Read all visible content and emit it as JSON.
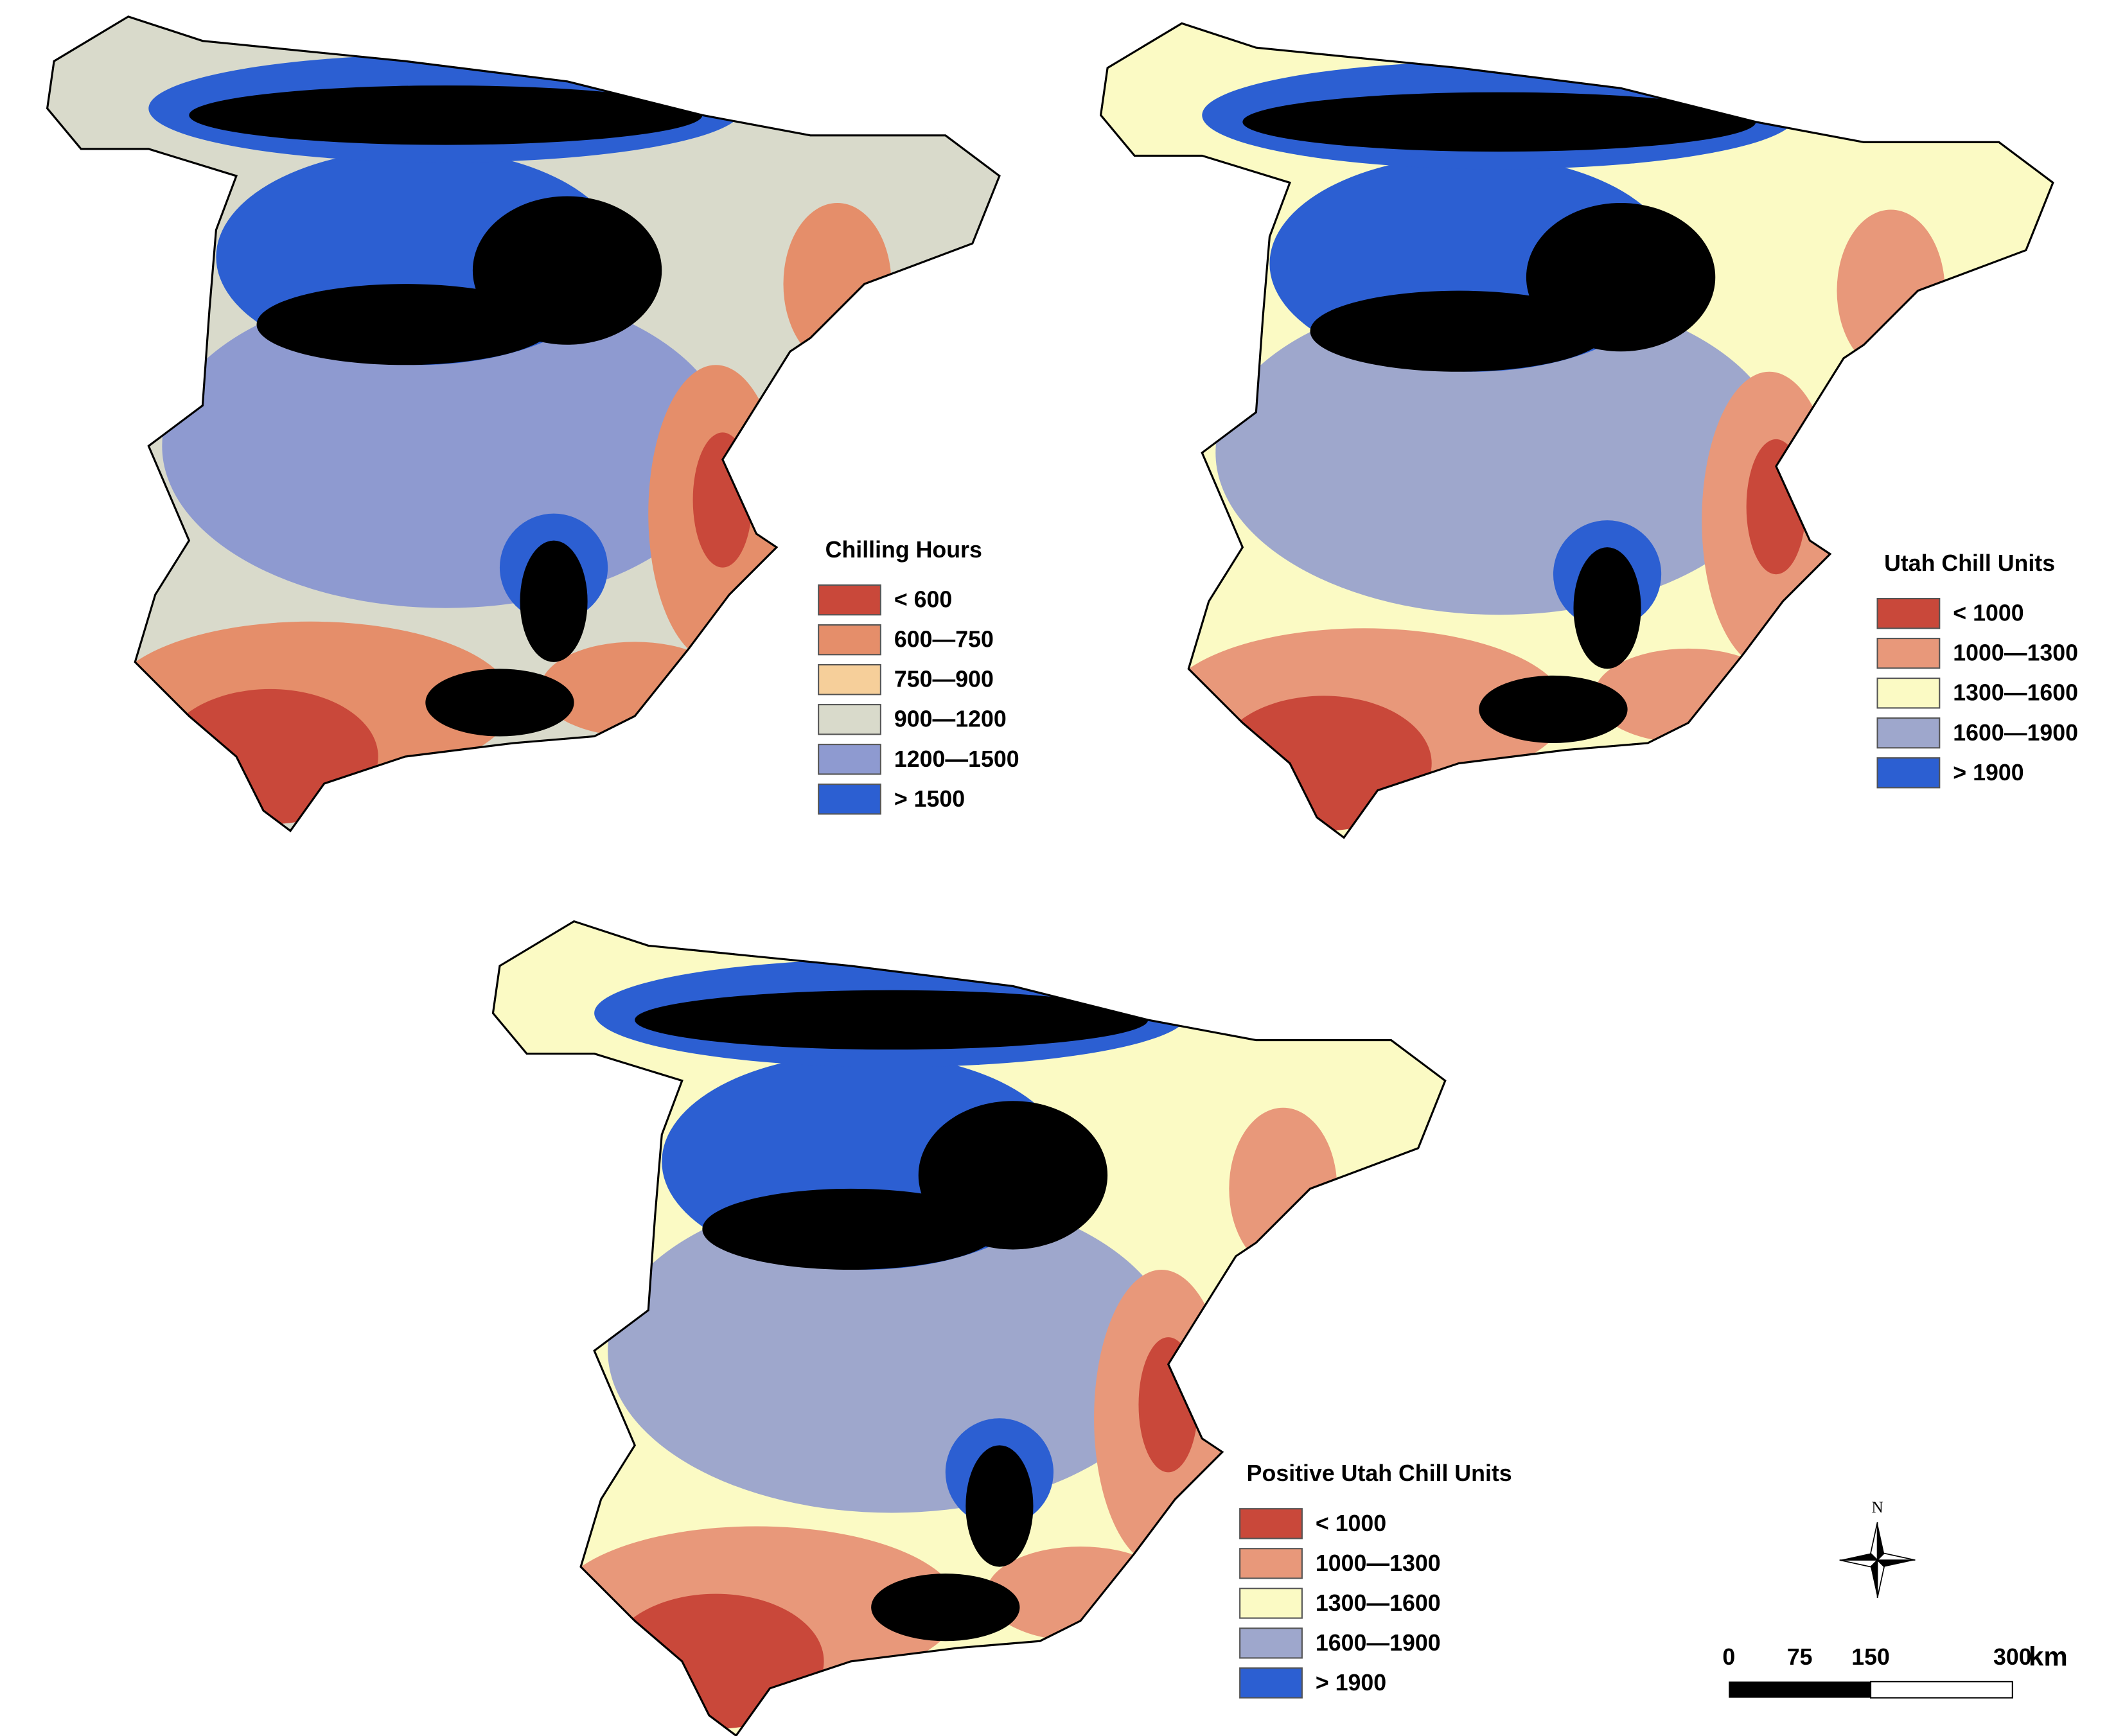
{
  "maps": [
    {
      "title": "Chilling Hours",
      "legend": [
        {
          "label": "< 600",
          "color": "#c9483a"
        },
        {
          "label": "600—750",
          "color": "#e58e6a"
        },
        {
          "label": "750—900",
          "color": "#f6cf9a"
        },
        {
          "label": "900—1200",
          "color": "#d9dacb"
        },
        {
          "label": "1200—1500",
          "color": "#8e9ad0"
        },
        {
          "label": "> 1500",
          "color": "#2c5fd2"
        }
      ]
    },
    {
      "title": "Utah Chill Units",
      "legend": [
        {
          "label": "< 1000",
          "color": "#c9483a"
        },
        {
          "label": "1000—1300",
          "color": "#e8987a"
        },
        {
          "label": "1300—1600",
          "color": "#fbfac4"
        },
        {
          "label": "1600—1900",
          "color": "#9ea7cc"
        },
        {
          "label": "> 1900",
          "color": "#2c5fd2"
        }
      ]
    },
    {
      "title": "Positive Utah Chill Units",
      "legend": [
        {
          "label": "< 1000",
          "color": "#c9483a"
        },
        {
          "label": "1000—1300",
          "color": "#e8987a"
        },
        {
          "label": "1300—1600",
          "color": "#fbfac4"
        },
        {
          "label": "1600—1900",
          "color": "#9ea7cc"
        },
        {
          "label": "> 1900",
          "color": "#2c5fd2"
        }
      ]
    }
  ],
  "north_label": "N",
  "scale_bar": {
    "ticks": [
      0,
      75,
      150,
      300
    ],
    "unit": "km"
  }
}
